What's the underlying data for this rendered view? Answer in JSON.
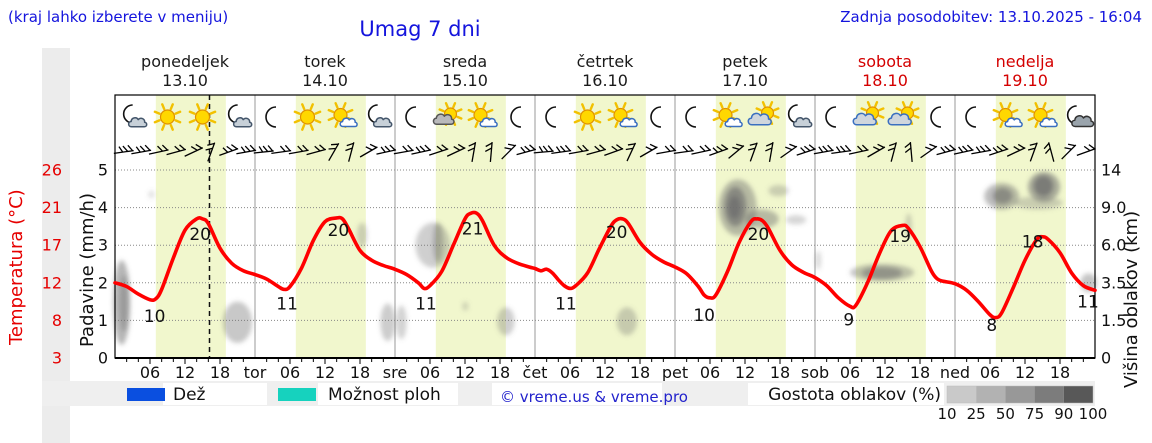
{
  "header": {
    "hint": "(kraj lahko izberete v meniju)",
    "title": "Umag 7 dni",
    "updated": "Zadnja posodobitev: 13.10.2025 - 16:04"
  },
  "days": [
    {
      "name": "ponedeljek",
      "date": "13.10",
      "color": "#1a1a1a",
      "abbr": ""
    },
    {
      "name": "torek",
      "date": "14.10",
      "color": "#1a1a1a",
      "abbr": "tor"
    },
    {
      "name": "sreda",
      "date": "15.10",
      "color": "#1a1a1a",
      "abbr": "sre"
    },
    {
      "name": "četrtek",
      "date": "16.10",
      "color": "#1a1a1a",
      "abbr": "čet"
    },
    {
      "name": "petek",
      "date": "17.10",
      "color": "#1a1a1a",
      "abbr": "pet"
    },
    {
      "name": "sobota",
      "date": "18.10",
      "color": "#d40000",
      "abbr": "sob"
    },
    {
      "name": "nedelja",
      "date": "19.10",
      "color": "#d40000",
      "abbr": "ned"
    }
  ],
  "axes": {
    "left_temp": {
      "title": "Temperatura (°C)",
      "ticks": [
        "26",
        "21",
        "17",
        "12",
        "8",
        "3"
      ]
    },
    "left_precip": {
      "title": "Padavine (mm/h)",
      "ticks": [
        "5",
        "4",
        "3",
        "2",
        "1",
        "0"
      ]
    },
    "right_cloud": {
      "title": "Višina oblakov (km)",
      "ticks": [
        "14",
        "9.0",
        "6.0",
        "3.5",
        "1.5",
        "0"
      ]
    },
    "x_hour_labels": [
      "06",
      "12",
      "18"
    ]
  },
  "legend": {
    "rain_label": "Dež",
    "showers_label": "Možnost ploh",
    "copyright": "© vreme.us & vreme.pro",
    "cloud_density_label": "Gostota oblakov (%)",
    "cloud_density_ticks": [
      "10",
      "25",
      "50",
      "75",
      "90",
      "100"
    ]
  },
  "colors": {
    "accent_blue": "#1414dd",
    "red_text": "#e60000",
    "temp_curve": "#ff0000",
    "day_band": "#f1f7cd",
    "rain_swatch": "#0a4fe0",
    "showers_swatch": "#16d2be",
    "cloud_scale": [
      "#c9c9c9",
      "#b2b2b2",
      "#989898",
      "#7c7c7c",
      "#585858"
    ],
    "grid": "#888888",
    "day_separator": "#999999"
  },
  "chart_data": {
    "type": "line",
    "title": "Umag 7 dni",
    "x_axis": {
      "unit": "hours",
      "start": "ponedeljek 13.10 00:00",
      "end": "nedelja 19.10 24:00",
      "range": [
        0,
        168
      ]
    },
    "y_left_precip": {
      "label": "Padavine (mm/h)",
      "ticks": [
        0,
        1,
        2,
        3,
        4,
        5
      ]
    },
    "y_left_temp_c": {
      "label": "Temperatura (°C)",
      "ticks_at_levels": [
        3,
        8,
        12,
        17,
        21,
        26
      ]
    },
    "y_right_cloud_km": {
      "label": "Višina oblakov (km)",
      "ticks_at_levels": [
        0,
        1.5,
        3.5,
        6.0,
        9.0,
        14
      ]
    },
    "current_time_hour": 16.2,
    "daylight_band_hours": [
      7,
      19
    ],
    "daily_min_max": [
      {
        "day": "ponedeljek",
        "min": 10,
        "max": 20
      },
      {
        "day": "torek",
        "min": 11,
        "max": 20
      },
      {
        "day": "sreda",
        "min": 11,
        "max": 21
      },
      {
        "day": "četrtek",
        "min": 11,
        "max": 20
      },
      {
        "day": "petek",
        "min": 10,
        "max": 20
      },
      {
        "day": "sobota",
        "min": 9,
        "max": 19
      },
      {
        "day": "nedelja",
        "min": 8,
        "max": 18,
        "evening": 11
      }
    ],
    "temperature_points": [
      [
        0,
        12.0
      ],
      [
        2,
        11.6
      ],
      [
        4,
        10.8
      ],
      [
        6,
        10.2
      ],
      [
        7,
        10.3
      ],
      [
        8,
        11.3
      ],
      [
        10,
        15.3
      ],
      [
        12,
        18.6
      ],
      [
        14,
        19.8
      ],
      [
        15,
        19.8
      ],
      [
        16,
        19.3
      ],
      [
        18,
        16.6
      ],
      [
        20,
        14.6
      ],
      [
        22,
        13.6
      ],
      [
        24,
        13.1
      ],
      [
        26,
        12.5
      ],
      [
        28,
        11.6
      ],
      [
        29,
        11.3
      ],
      [
        30,
        11.6
      ],
      [
        32,
        14.0
      ],
      [
        34,
        17.5
      ],
      [
        36,
        19.5
      ],
      [
        38,
        19.9
      ],
      [
        39,
        19.8
      ],
      [
        40,
        18.8
      ],
      [
        42,
        16.3
      ],
      [
        44,
        15.0
      ],
      [
        46,
        14.3
      ],
      [
        48,
        13.8
      ],
      [
        50,
        13.1
      ],
      [
        52,
        12.0
      ],
      [
        53,
        11.4
      ],
      [
        54,
        11.7
      ],
      [
        56,
        13.5
      ],
      [
        58,
        17.0
      ],
      [
        60,
        19.8
      ],
      [
        61,
        20.4
      ],
      [
        62,
        20.4
      ],
      [
        63,
        19.6
      ],
      [
        65,
        17.0
      ],
      [
        67,
        15.4
      ],
      [
        69,
        14.6
      ],
      [
        71,
        14.1
      ],
      [
        72,
        13.9
      ],
      [
        73,
        13.6
      ],
      [
        74,
        13.8
      ],
      [
        75,
        13.3
      ],
      [
        76,
        12.4
      ],
      [
        77,
        11.7
      ],
      [
        78,
        11.4
      ],
      [
        79,
        11.7
      ],
      [
        81,
        13.3
      ],
      [
        83,
        16.5
      ],
      [
        85,
        19.0
      ],
      [
        86,
        19.7
      ],
      [
        87,
        19.8
      ],
      [
        88,
        19.3
      ],
      [
        90,
        17.3
      ],
      [
        92,
        15.8
      ],
      [
        94,
        14.8
      ],
      [
        96,
        14.1
      ],
      [
        98,
        13.2
      ],
      [
        100,
        11.6
      ],
      [
        101,
        10.7
      ],
      [
        102,
        10.4
      ],
      [
        103,
        10.7
      ],
      [
        105,
        13.5
      ],
      [
        107,
        17.3
      ],
      [
        109,
        19.5
      ],
      [
        110,
        19.8
      ],
      [
        111,
        19.6
      ],
      [
        112,
        18.8
      ],
      [
        114,
        16.3
      ],
      [
        116,
        14.4
      ],
      [
        118,
        13.4
      ],
      [
        120,
        12.7
      ],
      [
        122,
        11.7
      ],
      [
        124,
        10.4
      ],
      [
        126,
        9.5
      ],
      [
        127,
        9.6
      ],
      [
        129,
        12.0
      ],
      [
        131,
        15.8
      ],
      [
        133,
        18.5
      ],
      [
        135,
        19.1
      ],
      [
        136,
        18.8
      ],
      [
        138,
        16.8
      ],
      [
        140,
        13.5
      ],
      [
        141,
        12.5
      ],
      [
        142,
        12.2
      ],
      [
        144,
        11.9
      ],
      [
        146,
        11.2
      ],
      [
        148,
        10.0
      ],
      [
        150,
        8.6
      ],
      [
        151,
        8.3
      ],
      [
        152,
        8.8
      ],
      [
        154,
        11.5
      ],
      [
        156,
        15.0
      ],
      [
        158,
        17.6
      ],
      [
        159,
        17.9
      ],
      [
        160,
        17.6
      ],
      [
        162,
        16.0
      ],
      [
        164,
        13.3
      ],
      [
        166,
        11.7
      ],
      [
        168,
        11.2
      ]
    ],
    "point_labels": [
      {
        "h": 6.8,
        "lev": 1.12,
        "t": "10"
      },
      {
        "h": 14.6,
        "lev": 3.3,
        "t": "20"
      },
      {
        "h": 29.5,
        "lev": 1.45,
        "t": "11"
      },
      {
        "h": 38.3,
        "lev": 3.4,
        "t": "20"
      },
      {
        "h": 53.3,
        "lev": 1.45,
        "t": "11"
      },
      {
        "h": 61.3,
        "lev": 3.45,
        "t": "21"
      },
      {
        "h": 77.3,
        "lev": 1.45,
        "t": "11"
      },
      {
        "h": 86.0,
        "lev": 3.35,
        "t": "20"
      },
      {
        "h": 101.0,
        "lev": 1.15,
        "t": "10"
      },
      {
        "h": 110.3,
        "lev": 3.3,
        "t": "20"
      },
      {
        "h": 125.8,
        "lev": 1.02,
        "t": "9"
      },
      {
        "h": 134.6,
        "lev": 3.25,
        "t": "19"
      },
      {
        "h": 150.3,
        "lev": 0.88,
        "t": "8"
      },
      {
        "h": 157.3,
        "lev": 3.1,
        "t": "18"
      },
      {
        "h": 166.8,
        "lev": 1.5,
        "t": "11"
      }
    ],
    "cloud_regions_fields": [
      "hour_start",
      "hour_end",
      "axis_level_bottom",
      "axis_level_top",
      "density"
    ],
    "cloud_regions": [
      [
        -0.3,
        2.6,
        0.35,
        2.6,
        0.5
      ],
      [
        0.8,
        2.2,
        0.7,
        2.2,
        0.4
      ],
      [
        18.5,
        23.5,
        0.4,
        1.5,
        0.38
      ],
      [
        6,
        6.5,
        4.25,
        4.45,
        0.22
      ],
      [
        41.5,
        43.2,
        2.95,
        3.6,
        0.3
      ],
      [
        45.5,
        48,
        0.45,
        1.45,
        0.35
      ],
      [
        48.2,
        50,
        0.5,
        1.4,
        0.3
      ],
      [
        51.5,
        57.5,
        2.4,
        3.6,
        0.32
      ],
      [
        54.5,
        56.2,
        2.55,
        3.6,
        0.4
      ],
      [
        59.5,
        60.6,
        1.25,
        1.5,
        0.25
      ],
      [
        65.5,
        68.5,
        0.6,
        1.35,
        0.32
      ],
      [
        86,
        89.5,
        0.6,
        1.35,
        0.32
      ],
      [
        103.5,
        110,
        3.25,
        4.75,
        0.45
      ],
      [
        104.5,
        108.2,
        3.5,
        4.55,
        0.65
      ],
      [
        105.2,
        107.2,
        3.7,
        4.3,
        0.8
      ],
      [
        108,
        113.8,
        3.45,
        3.95,
        0.45
      ],
      [
        112,
        115.5,
        4.3,
        4.6,
        0.3
      ],
      [
        115,
        118.5,
        3.55,
        3.8,
        0.28
      ],
      [
        120.2,
        120.9,
        2.35,
        2.85,
        0.25
      ],
      [
        126,
        137,
        2.05,
        2.5,
        0.4
      ],
      [
        128,
        135,
        2.1,
        2.42,
        0.55
      ],
      [
        135.5,
        136.6,
        3.2,
        3.85,
        0.3
      ],
      [
        149,
        155,
        3.95,
        4.65,
        0.45
      ],
      [
        150.5,
        153.8,
        4.1,
        4.52,
        0.62
      ],
      [
        156.5,
        162,
        4.15,
        4.95,
        0.55
      ],
      [
        157.5,
        160.8,
        4.3,
        4.85,
        0.78
      ],
      [
        154,
        162.5,
        3.95,
        4.3,
        0.3
      ],
      [
        165.5,
        168.3,
        1.75,
        2.25,
        0.4
      ]
    ],
    "icons_by_day": [
      [
        "moon-cloud",
        "sun",
        "sun",
        "moon-cloud"
      ],
      [
        "moon",
        "sun",
        "sun-cloud",
        "moon-cloud"
      ],
      [
        "moon",
        "sun-graycloud",
        "sun-cloud",
        "moon"
      ],
      [
        "moon",
        "sun",
        "sun-cloud",
        "moon"
      ],
      [
        "moon",
        "sun-cloud",
        "cloud-sun",
        "moon-cloud"
      ],
      [
        "moon",
        "cloud-sun",
        "cloud-sun",
        "moon"
      ],
      [
        "moon",
        "sun-cloud",
        "sun-cloud",
        "moon-graycloud"
      ]
    ],
    "icon_hours": [
      3,
      9,
      15,
      21
    ],
    "wind_barbs": {
      "hour_offsets": [
        1.5,
        4.5,
        7.5,
        10.5,
        13.5,
        16.5,
        19.5,
        22.5
      ],
      "angles_by_day": [
        [
          8,
          10,
          12,
          15,
          25,
          70,
          20,
          10
        ],
        [
          6,
          8,
          10,
          15,
          60,
          75,
          30,
          12
        ],
        [
          10,
          12,
          18,
          25,
          80,
          85,
          45,
          15
        ],
        [
          5,
          8,
          10,
          15,
          20,
          65,
          30,
          10
        ],
        [
          8,
          12,
          20,
          40,
          70,
          80,
          35,
          18
        ],
        [
          10,
          8,
          12,
          30,
          75,
          95,
          35,
          15
        ],
        [
          12,
          10,
          18,
          25,
          70,
          105,
          45,
          20
        ]
      ],
      "feathers_by_day": [
        [
          3,
          3,
          2,
          2,
          2,
          2,
          3,
          3
        ],
        [
          3,
          2,
          2,
          2,
          2,
          2,
          2,
          3
        ],
        [
          2,
          3,
          2,
          2,
          2,
          2,
          2,
          3
        ],
        [
          3,
          3,
          2,
          2,
          2,
          2,
          2,
          2
        ],
        [
          2,
          2,
          3,
          2,
          2,
          2,
          2,
          3
        ],
        [
          3,
          3,
          2,
          2,
          2,
          2,
          2,
          3
        ],
        [
          3,
          3,
          3,
          2,
          2,
          2,
          2,
          2
        ]
      ]
    }
  }
}
